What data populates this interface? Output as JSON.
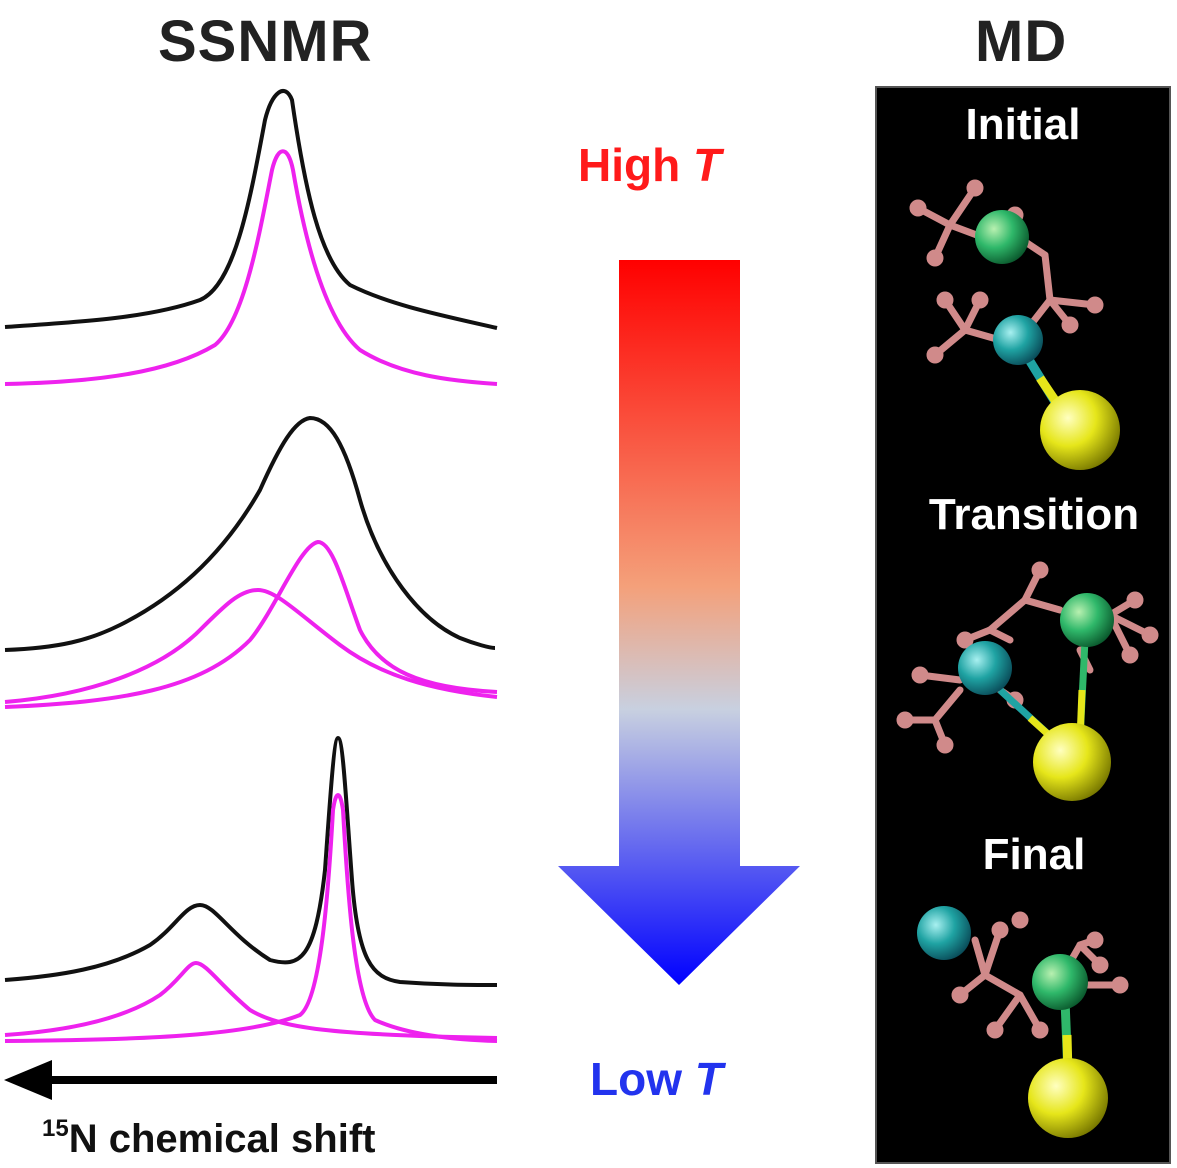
{
  "headers": {
    "left": "SSNMR",
    "right": "MD"
  },
  "temperature": {
    "high_prefix": "High ",
    "high_var": "T",
    "low_prefix": "Low ",
    "low_var": "T",
    "high_color": "#ff1a1a",
    "low_color": "#2233ee",
    "gradient": [
      "#ff0000",
      "#f4a07a",
      "#c8d0e0",
      "#0000ff"
    ]
  },
  "axis": {
    "isotope": "15",
    "label": "N chemical shift"
  },
  "md_snapshots": [
    "Initial",
    "Transition",
    "Final"
  ],
  "colors": {
    "experimental": "#111111",
    "fit": "#ee22ee",
    "bond": "#d08a8a",
    "metal_a": "#2fb86a",
    "metal_b": "#1fa3a3",
    "sulfur": "#e6e61a"
  }
}
